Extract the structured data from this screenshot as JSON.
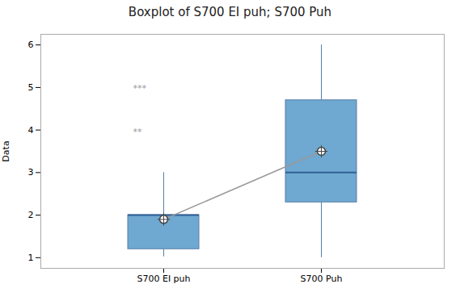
{
  "chart_data": {
    "type": "box",
    "title": "Boxplot of S700 EI puh; S700 Puh",
    "ylabel": "Data",
    "categories": [
      "S700 EI puh",
      "S700 Puh"
    ],
    "boxes": [
      {
        "q1": 1.2,
        "median": 2.0,
        "q3": 2.0,
        "mean": 1.9,
        "whislo": 1.02,
        "whishi": 3.0
      },
      {
        "q1": 2.3,
        "median": 3.0,
        "q3": 4.7,
        "mean": 3.5,
        "whislo": 1.0,
        "whishi": 6.0
      }
    ],
    "color": "#6FA8D0",
    "ylim": [
      0.75,
      6.25
    ],
    "yticks": [
      1,
      2,
      3,
      4,
      5,
      6
    ],
    "annotations": [
      {
        "text": "***",
        "x": "S700 EI puh",
        "y": 4.98
      },
      {
        "text": "**",
        "x": "S700 EI puh",
        "y": 3.96
      }
    ]
  }
}
